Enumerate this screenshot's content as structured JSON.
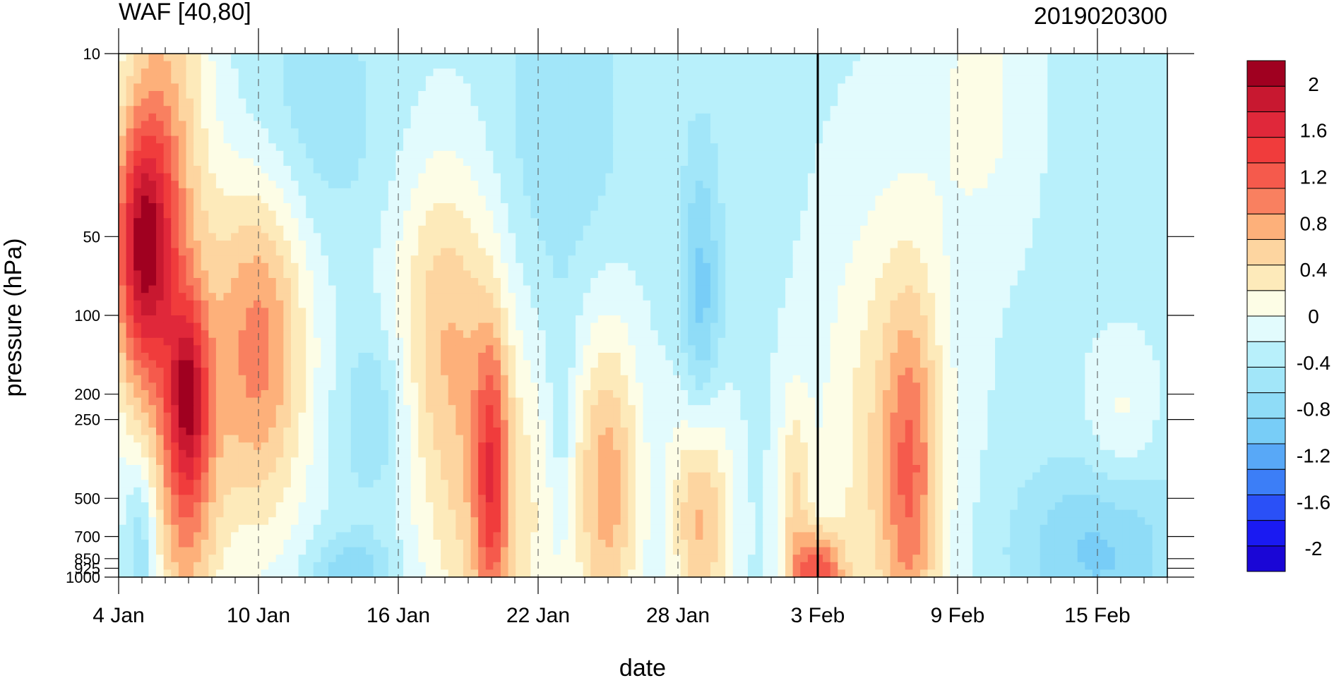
{
  "chart_data": {
    "type": "heatmap",
    "title": "WAF [40,80]",
    "subtitle": "2019020300",
    "xlabel": "date",
    "ylabel": "pressure (hPa)",
    "x_start": "2019-01-04",
    "x_end": "2019-02-18",
    "x_ticks": [
      {
        "date": "2019-01-04",
        "label": "4 Jan"
      },
      {
        "date": "2019-01-10",
        "label": "10 Jan"
      },
      {
        "date": "2019-01-16",
        "label": "16 Jan"
      },
      {
        "date": "2019-01-22",
        "label": "22 Jan"
      },
      {
        "date": "2019-01-28",
        "label": "28 Jan"
      },
      {
        "date": "2019-02-03",
        "label": "3 Feb"
      },
      {
        "date": "2019-02-09",
        "label": "9 Feb"
      },
      {
        "date": "2019-02-15",
        "label": "15 Feb"
      }
    ],
    "y_scale": "log",
    "y_reversed": true,
    "ylim": [
      1000,
      10
    ],
    "y_ticks": [
      {
        "value": 10,
        "label": "10"
      },
      {
        "value": 50,
        "label": "50"
      },
      {
        "value": 100,
        "label": "100"
      },
      {
        "value": 200,
        "label": "200"
      },
      {
        "value": 250,
        "label": "250"
      },
      {
        "value": 500,
        "label": "500"
      },
      {
        "value": 700,
        "label": "700"
      },
      {
        "value": 850,
        "label": "850"
      },
      {
        "value": 925,
        "label": "925"
      },
      {
        "value": 1000,
        "label": "1000"
      }
    ],
    "marker_date": "2019-02-03",
    "colorbar": {
      "levels": [
        -2.2,
        -2.0,
        -1.8,
        -1.6,
        -1.4,
        -1.2,
        -1.0,
        -0.8,
        -0.6,
        -0.4,
        -0.2,
        0.0,
        0.2,
        0.4,
        0.6,
        0.8,
        1.0,
        1.2,
        1.4,
        1.6,
        1.8,
        2.0,
        2.2
      ],
      "colors": [
        "#1a06d6",
        "#1a1af2",
        "#2a50f7",
        "#3c7ef7",
        "#58a8f7",
        "#78cdf7",
        "#8fdcf7",
        "#a2e6f9",
        "#b8f0fb",
        "#e2fbfd",
        "#fdfde6",
        "#fdeaba",
        "#fdd5a0",
        "#fdb07a",
        "#f98060",
        "#f55a4c",
        "#f03c3c",
        "#e0283a",
        "#c81830",
        "#a00020"
      ],
      "tick_values": [
        2,
        1.6,
        1.2,
        0.8,
        0.4,
        0,
        -0.4,
        -0.8,
        -1.2,
        -1.6,
        -2
      ],
      "tick_labels": [
        "2",
        "1.6",
        "1.2",
        "0.8",
        "0.4",
        "0",
        "-0.4",
        "-0.8",
        "-1.2",
        "-1.6",
        "-2"
      ]
    },
    "features": [
      {
        "date": "2019-01-05",
        "p": 55,
        "value": 1.2,
        "sx": 0.9,
        "sy": 0.35
      },
      {
        "date": "2019-01-06",
        "p": 40,
        "value": 0.6,
        "sx": 1.4,
        "sy": 0.9
      },
      {
        "date": "2019-01-07",
        "p": 200,
        "value": 0.9,
        "sx": 0.6,
        "sy": 0.25
      },
      {
        "date": "2019-01-10",
        "p": 130,
        "value": 0.8,
        "sx": 1.5,
        "sy": 0.5
      },
      {
        "date": "2019-01-07",
        "p": 600,
        "value": 0.3,
        "sx": 1.0,
        "sy": 0.4
      },
      {
        "date": "2019-01-05",
        "p": 750,
        "value": -1.1,
        "sx": 0.5,
        "sy": 0.25
      },
      {
        "date": "2019-01-12",
        "p": 18,
        "value": -0.8,
        "sx": 2.5,
        "sy": 0.35
      },
      {
        "date": "2019-01-15",
        "p": 240,
        "value": -0.9,
        "sx": 1.0,
        "sy": 0.25
      },
      {
        "date": "2019-01-18",
        "p": 100,
        "value": 0.35,
        "sx": 1.6,
        "sy": 0.45
      },
      {
        "date": "2019-01-20",
        "p": 600,
        "value": 0.3,
        "sx": 2.0,
        "sy": 0.5
      },
      {
        "date": "2019-01-20",
        "p": 400,
        "value": 0.6,
        "sx": 0.5,
        "sy": 0.4
      },
      {
        "date": "2019-01-14",
        "p": 950,
        "value": -1.0,
        "sx": 1.2,
        "sy": 0.1
      },
      {
        "date": "2019-01-23",
        "p": 20,
        "value": -0.8,
        "sx": 2.0,
        "sy": 0.5
      },
      {
        "date": "2019-01-23",
        "p": 250,
        "value": -0.8,
        "sx": 0.4,
        "sy": 0.3
      },
      {
        "date": "2019-01-25",
        "p": 450,
        "value": 0.6,
        "sx": 1.0,
        "sy": 0.45
      },
      {
        "date": "2019-01-29",
        "p": 100,
        "value": -1.2,
        "sx": 0.6,
        "sy": 0.45
      },
      {
        "date": "2019-01-29",
        "p": 550,
        "value": 0.7,
        "sx": 0.9,
        "sy": 0.35
      },
      {
        "date": "2019-01-30",
        "p": 300,
        "value": -0.5,
        "sx": 0.9,
        "sy": 0.4
      },
      {
        "date": "2019-02-02",
        "p": 500,
        "value": 0.2,
        "sx": 0.5,
        "sy": 0.3
      },
      {
        "date": "2019-02-03",
        "p": 980,
        "value": 0.9,
        "sx": 0.8,
        "sy": 0.12
      },
      {
        "date": "2019-02-06",
        "p": 350,
        "value": 0.25,
        "sx": 2.0,
        "sy": 0.7
      },
      {
        "date": "2019-02-07",
        "p": 400,
        "value": 0.4,
        "sx": 0.8,
        "sy": 0.5
      },
      {
        "date": "2019-02-10",
        "p": 15,
        "value": -0.1,
        "sx": 1.5,
        "sy": 0.4
      },
      {
        "date": "2019-02-15",
        "p": 800,
        "value": -1.1,
        "sx": 2.5,
        "sy": 0.25
      },
      {
        "date": "2019-02-16",
        "p": 250,
        "value": -0.1,
        "sx": 1.0,
        "sy": 0.2
      }
    ],
    "background": -0.45
  }
}
